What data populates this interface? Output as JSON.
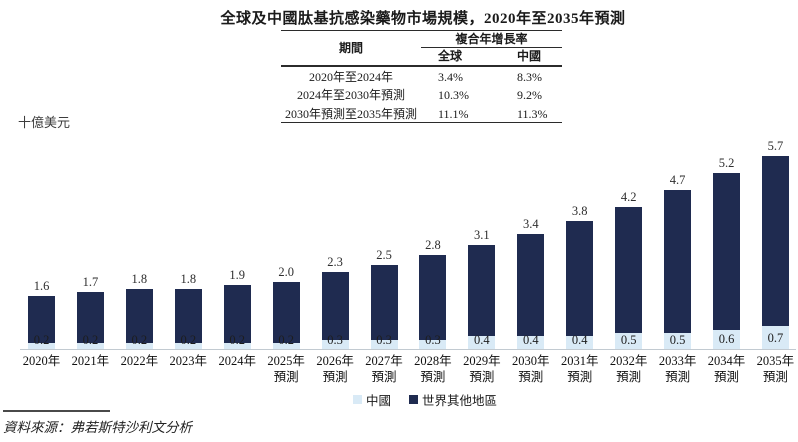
{
  "title": "全球及中國肽基抗感染藥物市場規模，2020年至2035年預測",
  "unit_label": "十億美元",
  "cagr_table": {
    "period_header": "期間",
    "cagr_header": "複合年增長率",
    "col_global": "全球",
    "col_china": "中國",
    "rows": [
      {
        "period": "2020年至2024年",
        "global": "3.4%",
        "china": "8.3%"
      },
      {
        "period": "2024年至2030年預測",
        "global": "10.3%",
        "china": "9.2%"
      },
      {
        "period": "2030年預測至2035年預測",
        "global": "11.1%",
        "china": "11.3%"
      }
    ]
  },
  "legend": {
    "china": "中國",
    "world": "世界其他地區"
  },
  "source": "資料來源：弗若斯特沙利文分析",
  "colors": {
    "china_segment": "#d9eaf6",
    "world_segment": "#1f2b50",
    "axis_line": "#c2cad1"
  },
  "chart_data": {
    "type": "bar",
    "stacked": true,
    "title": "全球及中國肽基抗感染藥物市場規模，2020年至2035年預測",
    "ylabel": "十億美元",
    "xlabel": "",
    "grid": false,
    "legend_position": "bottom",
    "ylim": [
      0,
      6
    ],
    "categories": [
      "2020年",
      "2021年",
      "2022年",
      "2023年",
      "2024年",
      "2025年預測",
      "2026年預測",
      "2027年預測",
      "2028年預測",
      "2029年預測",
      "2030年預測",
      "2031年預測",
      "2032年預測",
      "2033年預測",
      "2034年預測",
      "2035年預測"
    ],
    "series": [
      {
        "name": "中國",
        "color": "#d9eaf6",
        "values": [
          0.2,
          0.2,
          0.2,
          0.2,
          0.2,
          0.2,
          0.3,
          0.3,
          0.3,
          0.4,
          0.4,
          0.4,
          0.5,
          0.5,
          0.6,
          0.7
        ]
      },
      {
        "name": "世界其他地區",
        "color": "#1f2b50",
        "values": [
          1.4,
          1.5,
          1.6,
          1.6,
          1.7,
          1.8,
          2.0,
          2.2,
          2.5,
          2.7,
          3.0,
          3.4,
          3.7,
          4.2,
          4.6,
          5.0
        ]
      }
    ],
    "totals": [
      1.6,
      1.7,
      1.8,
      1.8,
      1.9,
      2.0,
      2.3,
      2.5,
      2.8,
      3.1,
      3.4,
      3.8,
      4.2,
      4.7,
      5.2,
      5.7
    ]
  }
}
